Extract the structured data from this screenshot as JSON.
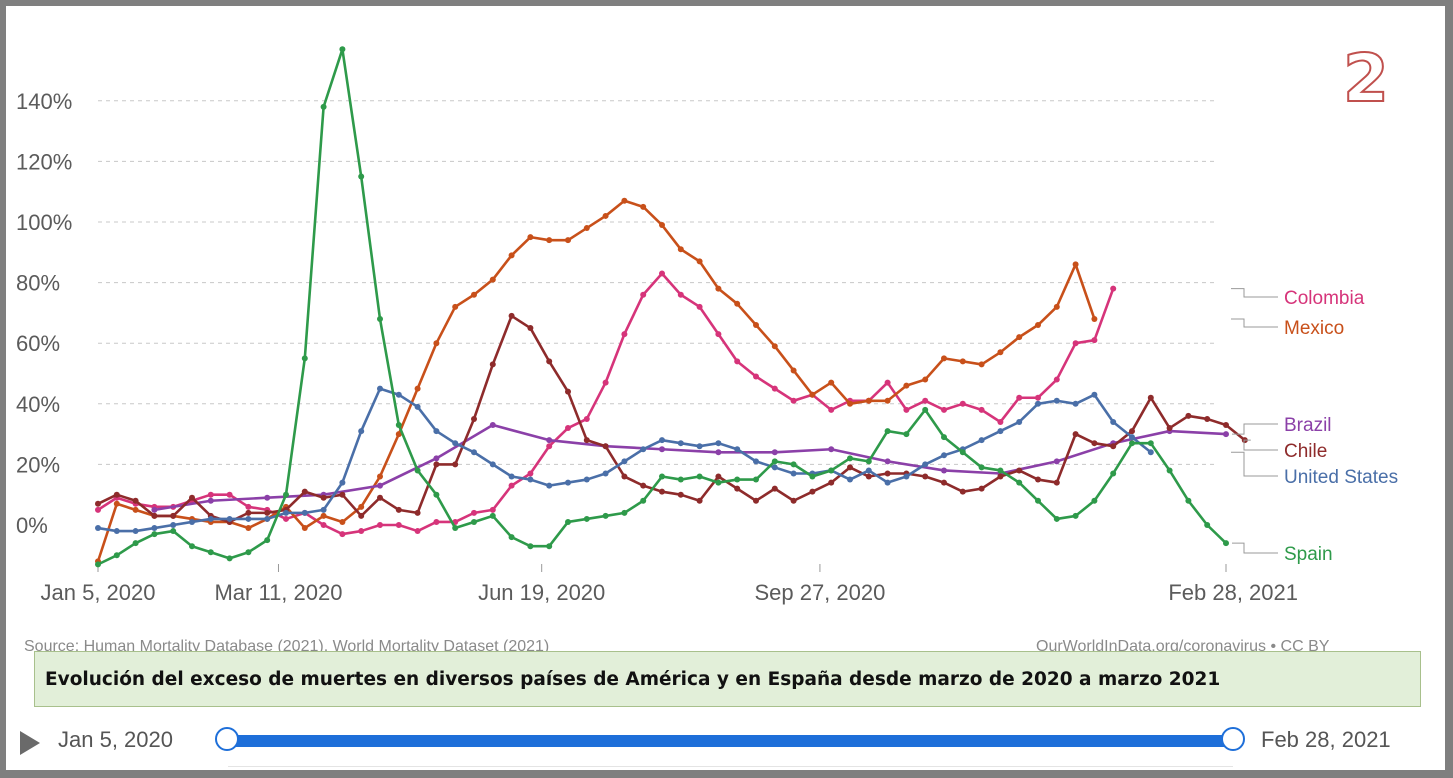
{
  "badge": "2",
  "caption": "Evolución del exceso de muertes en diversos países de América y en España desde marzo de 2020 a marzo 2021",
  "source_left": "Source: Human Mortality Database (2021), World Mortality Dataset (2021)",
  "source_right": "OurWorldInData.org/coronavirus • CC BY",
  "timeline": {
    "start_label": "Jan 5, 2020",
    "end_label": "Feb 28, 2021",
    "range_start": 0,
    "range_end": 1
  },
  "chart_data": {
    "type": "line",
    "title": "",
    "xlabel": "",
    "ylabel": "",
    "x_range_weeks": [
      0,
      60
    ],
    "ylim": [
      -15,
      160
    ],
    "grid": true,
    "legend_placement": "right",
    "y_ticks": [
      {
        "value": 0,
        "label": "0%"
      },
      {
        "value": 20,
        "label": "20%"
      },
      {
        "value": 40,
        "label": "40%"
      },
      {
        "value": 60,
        "label": "60%"
      },
      {
        "value": 80,
        "label": "80%"
      },
      {
        "value": 100,
        "label": "100%"
      },
      {
        "value": 120,
        "label": "120%"
      },
      {
        "value": 140,
        "label": "140%"
      }
    ],
    "x_ticks": [
      {
        "week": 0,
        "label": "Jan 5, 2020"
      },
      {
        "week": 9.6,
        "label": "Mar 11, 2020"
      },
      {
        "week": 23.6,
        "label": "Jun 19, 2020"
      },
      {
        "week": 38.4,
        "label": "Sep 27, 2020"
      },
      {
        "week": 60,
        "label": "Feb 28, 2021"
      }
    ],
    "series": [
      {
        "name": "Colombia",
        "color": "#d6347a",
        "values": [
          5,
          9,
          7,
          6,
          6,
          8,
          10,
          10,
          6,
          5,
          2,
          4,
          0,
          -3,
          -2,
          0,
          0,
          -2,
          1,
          1,
          4,
          5,
          13,
          17,
          26,
          32,
          35,
          47,
          63,
          76,
          83,
          76,
          72,
          63,
          54,
          49,
          45,
          41,
          43,
          38,
          41,
          41,
          47,
          38,
          41,
          38,
          40,
          38,
          34,
          42,
          42,
          48,
          60,
          61,
          78
        ]
      },
      {
        "name": "Mexico",
        "color": "#c8501a",
        "values": [
          -12,
          7,
          5,
          3,
          3,
          2,
          1,
          1,
          -1,
          2,
          6,
          -1,
          3,
          1,
          6,
          16,
          30,
          45,
          60,
          72,
          76,
          81,
          89,
          95,
          94,
          94,
          98,
          102,
          107,
          105,
          99,
          91,
          87,
          78,
          73,
          66,
          59,
          51,
          43,
          47,
          40,
          41,
          41,
          46,
          48,
          55,
          54,
          53,
          57,
          62,
          66,
          72,
          86,
          68
        ]
      },
      {
        "name": "Brazil",
        "color": "#8b40a8",
        "start_week": 3,
        "values": [
          {
            "week": 3,
            "value": 5
          },
          {
            "week": 6,
            "value": 8
          },
          {
            "week": 9,
            "value": 9
          },
          {
            "week": 12,
            "value": 10
          },
          {
            "week": 15,
            "value": 13
          },
          {
            "week": 18,
            "value": 22
          },
          {
            "week": 21,
            "value": 33
          },
          {
            "week": 24,
            "value": 28
          },
          {
            "week": 27,
            "value": 26
          },
          {
            "week": 30,
            "value": 25
          },
          {
            "week": 33,
            "value": 24
          },
          {
            "week": 36,
            "value": 24
          },
          {
            "week": 39,
            "value": 25
          },
          {
            "week": 42,
            "value": 21
          },
          {
            "week": 45,
            "value": 18
          },
          {
            "week": 48,
            "value": 17
          },
          {
            "week": 51,
            "value": 21
          },
          {
            "week": 54,
            "value": 27
          },
          {
            "week": 57,
            "value": 31
          },
          {
            "week": 60,
            "value": 30
          }
        ]
      },
      {
        "name": "Chile",
        "color": "#8e2b2b",
        "values": [
          7,
          10,
          8,
          3,
          3,
          9,
          3,
          1,
          4,
          4,
          5,
          11,
          9,
          10,
          3,
          9,
          5,
          4,
          20,
          20,
          35,
          53,
          69,
          65,
          54,
          44,
          28,
          26,
          16,
          13,
          11,
          10,
          8,
          16,
          12,
          8,
          12,
          8,
          11,
          14,
          19,
          16,
          17,
          17,
          16,
          14,
          11,
          12,
          16,
          18,
          15,
          14,
          30,
          27,
          26,
          31,
          42,
          32,
          36,
          35,
          33,
          28
        ]
      },
      {
        "name": "United States",
        "color": "#4a6fa8",
        "values": [
          -1,
          -2,
          -2,
          -1,
          0,
          1,
          2,
          2,
          2,
          2,
          4,
          4,
          5,
          14,
          31,
          45,
          43,
          39,
          31,
          27,
          24,
          20,
          16,
          15,
          13,
          14,
          15,
          17,
          21,
          25,
          28,
          27,
          26,
          27,
          25,
          21,
          19,
          17,
          17,
          18,
          15,
          18,
          14,
          16,
          20,
          23,
          25,
          28,
          31,
          34,
          40,
          41,
          40,
          43,
          34,
          29,
          24
        ]
      },
      {
        "name": "Spain",
        "color": "#2e9a4a",
        "values": [
          -13,
          -10,
          -6,
          -3,
          -2,
          -7,
          -9,
          -11,
          -9,
          -5,
          10,
          55,
          138,
          157,
          115,
          68,
          33,
          18,
          10,
          -1,
          1,
          3,
          -4,
          -7,
          -7,
          1,
          2,
          3,
          4,
          8,
          16,
          15,
          16,
          14,
          15,
          15,
          21,
          20,
          16,
          18,
          22,
          21,
          31,
          30,
          38,
          29,
          24,
          19,
          18,
          14,
          8,
          2,
          3,
          8,
          17,
          27,
          27,
          18,
          8,
          0,
          -6
        ]
      }
    ]
  }
}
